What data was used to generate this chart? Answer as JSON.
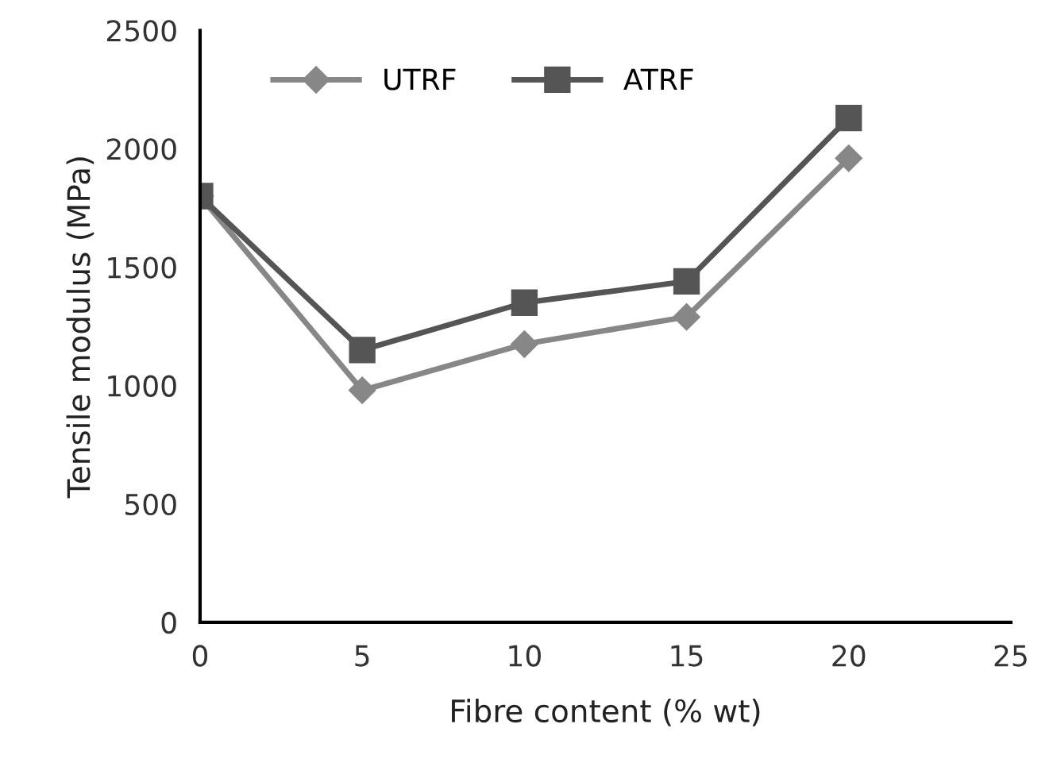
{
  "chart_data": {
    "type": "line",
    "xlabel": "Fibre content (% wt)",
    "ylabel": "Tensile modulus (MPa)",
    "x": [
      0,
      5,
      10,
      15,
      20
    ],
    "series": [
      {
        "name": "UTRF",
        "color": "#878787",
        "values": [
          1800,
          980,
          1175,
          1290,
          1960
        ],
        "marker": "diamond"
      },
      {
        "name": "ATRF",
        "color": "#555555",
        "values": [
          1800,
          1150,
          1350,
          1440,
          2130
        ],
        "marker": "square"
      }
    ],
    "xlim": [
      0,
      25
    ],
    "xticks": [
      0,
      5,
      10,
      15,
      20,
      25
    ],
    "ylim": [
      0,
      2500
    ],
    "yticks": [
      0,
      500,
      1000,
      1500,
      2000,
      2500
    ],
    "grid": false,
    "legend": "top",
    "line_style": "solid"
  }
}
